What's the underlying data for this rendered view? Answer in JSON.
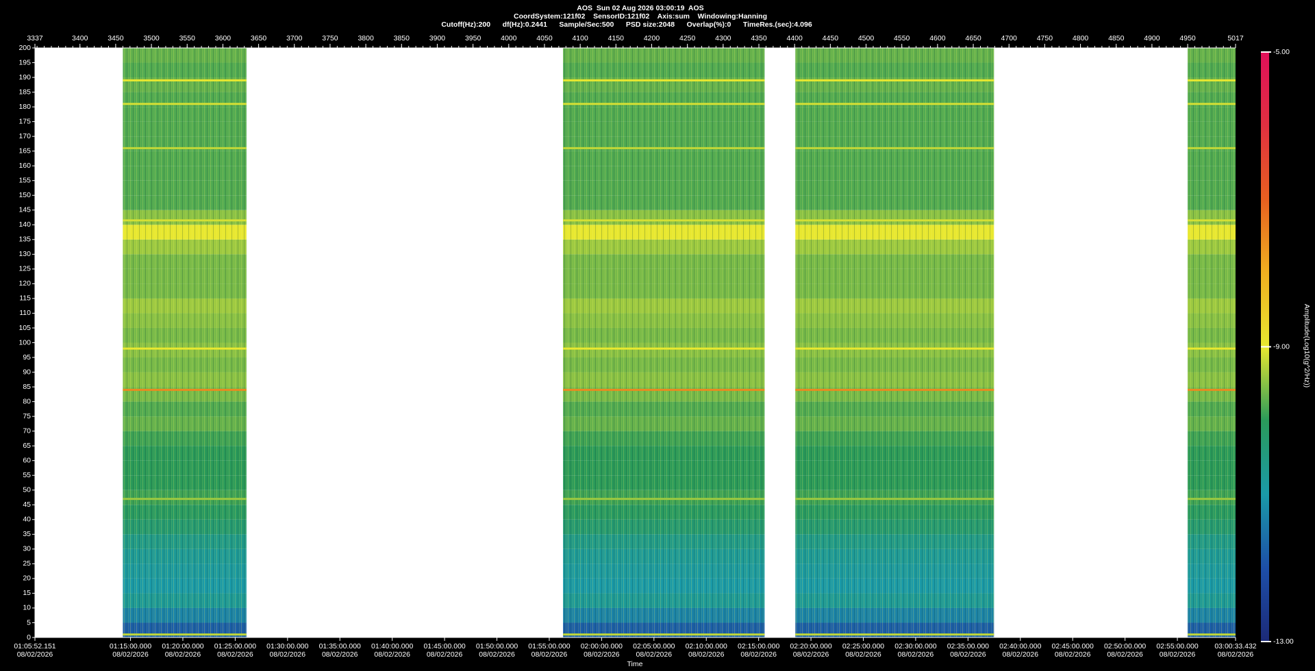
{
  "chart_data": {
    "type": "spectrogram",
    "title": "AOS  Sun 02 Aug 2026 03:00:19  AOS",
    "subtitle": "CoordSystem:121f02    SensorID:121f02    Axis:sum    Windowing:Hanning",
    "parameters": "Cutoff(Hz):200      df(Hz):0.2441      Sample/Sec:500      PSD size:2048      Overlap(%):0      TimeRes.(sec):4.096",
    "xlabel": "Time",
    "colorbar_label": "Amplitude(Log10(g^2/Hz))",
    "xlim": [
      3337,
      5017
    ],
    "xticks": [
      3337,
      3400,
      3450,
      3500,
      3550,
      3600,
      3650,
      3700,
      3750,
      3800,
      3850,
      3900,
      3950,
      4000,
      4050,
      4100,
      4150,
      4200,
      4250,
      4300,
      4350,
      4400,
      4450,
      4500,
      4550,
      4600,
      4650,
      4700,
      4750,
      4800,
      4850,
      4900,
      4950,
      5017
    ],
    "time_ticks": [
      {
        "value": 3337,
        "label": "01:05:52.151",
        "date": "08/02/2026"
      },
      {
        "value": 3470.75,
        "label": "01:15:00.000",
        "date": "08/02/2026"
      },
      {
        "value": 3543.99,
        "label": "01:20:00.000",
        "date": "08/02/2026"
      },
      {
        "value": 3617.24,
        "label": "01:25:00.000",
        "date": "08/02/2026"
      },
      {
        "value": 3690.48,
        "label": "01:30:00.000",
        "date": "08/02/2026"
      },
      {
        "value": 3763.72,
        "label": "01:35:00.000",
        "date": "08/02/2026"
      },
      {
        "value": 3836.96,
        "label": "01:40:00.000",
        "date": "08/02/2026"
      },
      {
        "value": 3910.2,
        "label": "01:45:00.000",
        "date": "08/02/2026"
      },
      {
        "value": 3983.45,
        "label": "01:50:00.000",
        "date": "08/02/2026"
      },
      {
        "value": 4056.69,
        "label": "01:55:00.000",
        "date": "08/02/2026"
      },
      {
        "value": 4129.93,
        "label": "02:00:00.000",
        "date": "08/02/2026"
      },
      {
        "value": 4203.17,
        "label": "02:05:00.000",
        "date": "08/02/2026"
      },
      {
        "value": 4276.41,
        "label": "02:10:00.000",
        "date": "08/02/2026"
      },
      {
        "value": 4349.66,
        "label": "02:15:00.000",
        "date": "08/02/2026"
      },
      {
        "value": 4422.9,
        "label": "02:20:00.000",
        "date": "08/02/2026"
      },
      {
        "value": 4496.14,
        "label": "02:25:00.000",
        "date": "08/02/2026"
      },
      {
        "value": 4569.38,
        "label": "02:30:00.000",
        "date": "08/02/2026"
      },
      {
        "value": 4642.62,
        "label": "02:35:00.000",
        "date": "08/02/2026"
      },
      {
        "value": 4715.87,
        "label": "02:40:00.000",
        "date": "08/02/2026"
      },
      {
        "value": 4789.11,
        "label": "02:45:00.000",
        "date": "08/02/2026"
      },
      {
        "value": 4862.35,
        "label": "02:50:00.000",
        "date": "08/02/2026"
      },
      {
        "value": 4935.59,
        "label": "02:55:00.000",
        "date": "08/02/2026"
      },
      {
        "value": 5017,
        "label": "03:00:33.432",
        "date": "08/02/2026"
      }
    ],
    "ylim": [
      0,
      200
    ],
    "yticks": [
      0,
      5,
      10,
      15,
      20,
      25,
      30,
      35,
      40,
      45,
      50,
      55,
      60,
      65,
      70,
      75,
      80,
      85,
      90,
      95,
      100,
      105,
      110,
      115,
      120,
      125,
      130,
      135,
      140,
      145,
      150,
      155,
      160,
      165,
      170,
      175,
      180,
      185,
      190,
      195,
      200
    ],
    "zlim": [
      -13,
      -5
    ],
    "zticks": [
      {
        "value": -13,
        "label": "-13.00"
      },
      {
        "value": -9,
        "label": "-9.00"
      },
      {
        "value": -5,
        "label": "-5.00"
      }
    ],
    "colormap": [
      "#1c2a78",
      "#1d4fa8",
      "#1a9aa8",
      "#2a9a5a",
      "#e8e830",
      "#f0b020",
      "#e86020",
      "#e03040",
      "#e0105a"
    ],
    "segments": [
      [
        3460,
        3633
      ],
      [
        4076,
        4358
      ],
      [
        4401,
        4679
      ],
      [
        4950,
        5017
      ]
    ],
    "profile": {
      "hz": [
        0,
        5,
        10,
        15,
        20,
        25,
        30,
        35,
        40,
        45,
        50,
        55,
        60,
        65,
        70,
        75,
        80,
        85,
        90,
        95,
        100,
        105,
        110,
        115,
        120,
        125,
        130,
        135,
        140,
        145,
        150,
        155,
        160,
        165,
        170,
        175,
        180,
        185,
        190,
        195
      ],
      "levels": [
        -11.8,
        -11.3,
        -10.8,
        -11.0,
        -10.9,
        -10.8,
        -10.6,
        -10.3,
        -10.1,
        -9.9,
        -10.0,
        -10.0,
        -10.0,
        -9.9,
        -9.7,
        -9.8,
        -9.6,
        -9.5,
        -9.6,
        -9.5,
        -9.6,
        -9.5,
        -9.4,
        -9.6,
        -9.6,
        -9.6,
        -9.4,
        -9.0,
        -9.5,
        -9.8,
        -9.8,
        -9.8,
        -9.8,
        -9.8,
        -9.8,
        -9.8,
        -9.8,
        -9.7,
        -9.8,
        -9.7
      ]
    },
    "lines": {
      "hz": [
        189,
        181,
        166,
        141.5,
        98,
        84,
        47,
        1
      ],
      "levels": [
        -9.0,
        -9.1,
        -9.2,
        -9.1,
        -9.0,
        -7.5,
        -9.4,
        -9.2
      ]
    }
  }
}
